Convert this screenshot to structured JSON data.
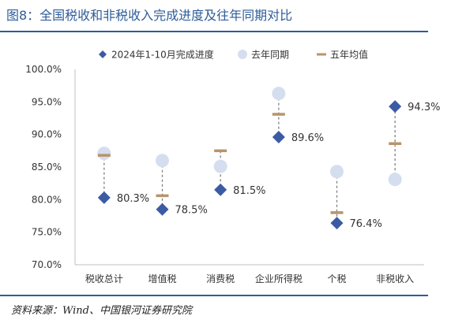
{
  "title": "图8：全国税收和非税收入完成进度及往年同期对比",
  "source": "资料来源：Wind、中国银河证券研究院",
  "colors": {
    "accent": "#2E5C9A",
    "current": "#3B5BA5",
    "last_year": "#D5DEEF",
    "five_year": "#B8946A"
  },
  "chart_data": {
    "type": "scatter",
    "title": "图8：全国税收和非税收入完成进度及往年同期对比",
    "categories": [
      "税收总计",
      "增值税",
      "消费税",
      "企业所得税",
      "个税",
      "非税收入"
    ],
    "ylim": [
      70,
      100
    ],
    "y_ticks": [
      "70.0%",
      "75.0%",
      "80.0%",
      "85.0%",
      "90.0%",
      "95.0%",
      "100.0%"
    ],
    "legend_position": "top",
    "series": [
      {
        "name": "2024年1-10月完成进度",
        "marker": "diamond",
        "values": [
          80.3,
          78.5,
          81.5,
          89.6,
          76.4,
          94.3
        ],
        "labels": [
          "80.3%",
          "78.5%",
          "81.5%",
          "89.6%",
          "76.4%",
          "94.3%"
        ]
      },
      {
        "name": "去年同期",
        "marker": "circle",
        "values": [
          87.1,
          86.0,
          85.1,
          96.3,
          84.3,
          83.1
        ]
      },
      {
        "name": "五年均值",
        "marker": "dash",
        "values": [
          86.8,
          80.6,
          87.5,
          93.1,
          78.0,
          88.6
        ]
      }
    ]
  }
}
